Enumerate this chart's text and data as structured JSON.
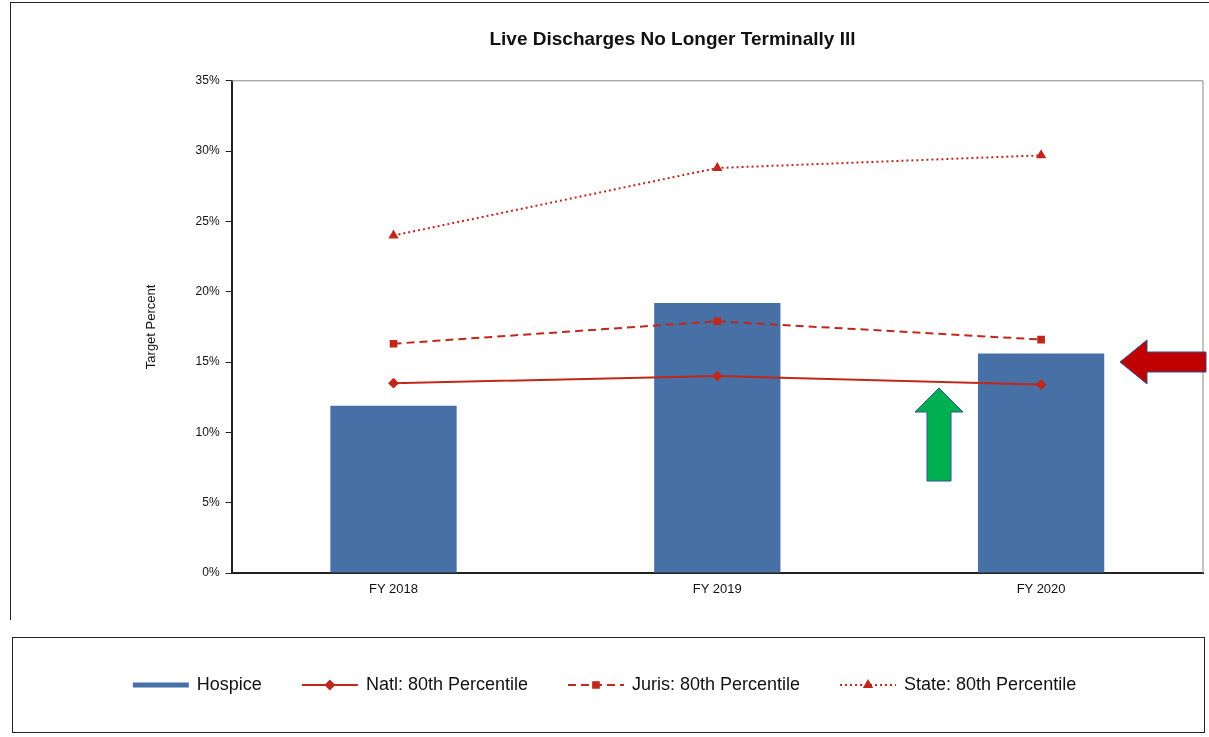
{
  "chart_data": {
    "type": "bar",
    "title": "Live Discharges No Longer Terminally Ill",
    "ylabel": "Target Percent",
    "categories": [
      "FY 2018",
      "FY 2019",
      "FY 2020"
    ],
    "series": [
      {
        "name": "Hospice",
        "color": "#4670a6",
        "values": [
          11.9,
          19.2,
          15.6
        ]
      },
      {
        "name": "Natl: 80th Percentile",
        "type": "line",
        "color": "#c0281c",
        "marker": "diamond",
        "line_style": "solid",
        "values": [
          13.5,
          14.0,
          13.4
        ]
      },
      {
        "name": "Juris: 80th Percentile",
        "type": "line",
        "color": "#c0281c",
        "marker": "square",
        "line_style": "dashed",
        "values": [
          16.3,
          17.9,
          16.6
        ]
      },
      {
        "name": "State: 80th Percentile",
        "type": "line",
        "color": "#c0281c",
        "marker": "triangle",
        "line_style": "dotted",
        "values": [
          24.0,
          28.8,
          29.7
        ]
      }
    ],
    "ylim": [
      0,
      35
    ],
    "yticks": [
      {
        "value": 0,
        "label": "0%"
      },
      {
        "value": 5,
        "label": "5%"
      },
      {
        "value": 10,
        "label": "10%"
      },
      {
        "value": 15,
        "label": "15%"
      },
      {
        "value": 20,
        "label": "20%"
      },
      {
        "value": 25,
        "label": "25%"
      },
      {
        "value": 30,
        "label": "30%"
      },
      {
        "value": 35,
        "label": "35%"
      }
    ],
    "grid": false,
    "legend": "bottom"
  }
}
